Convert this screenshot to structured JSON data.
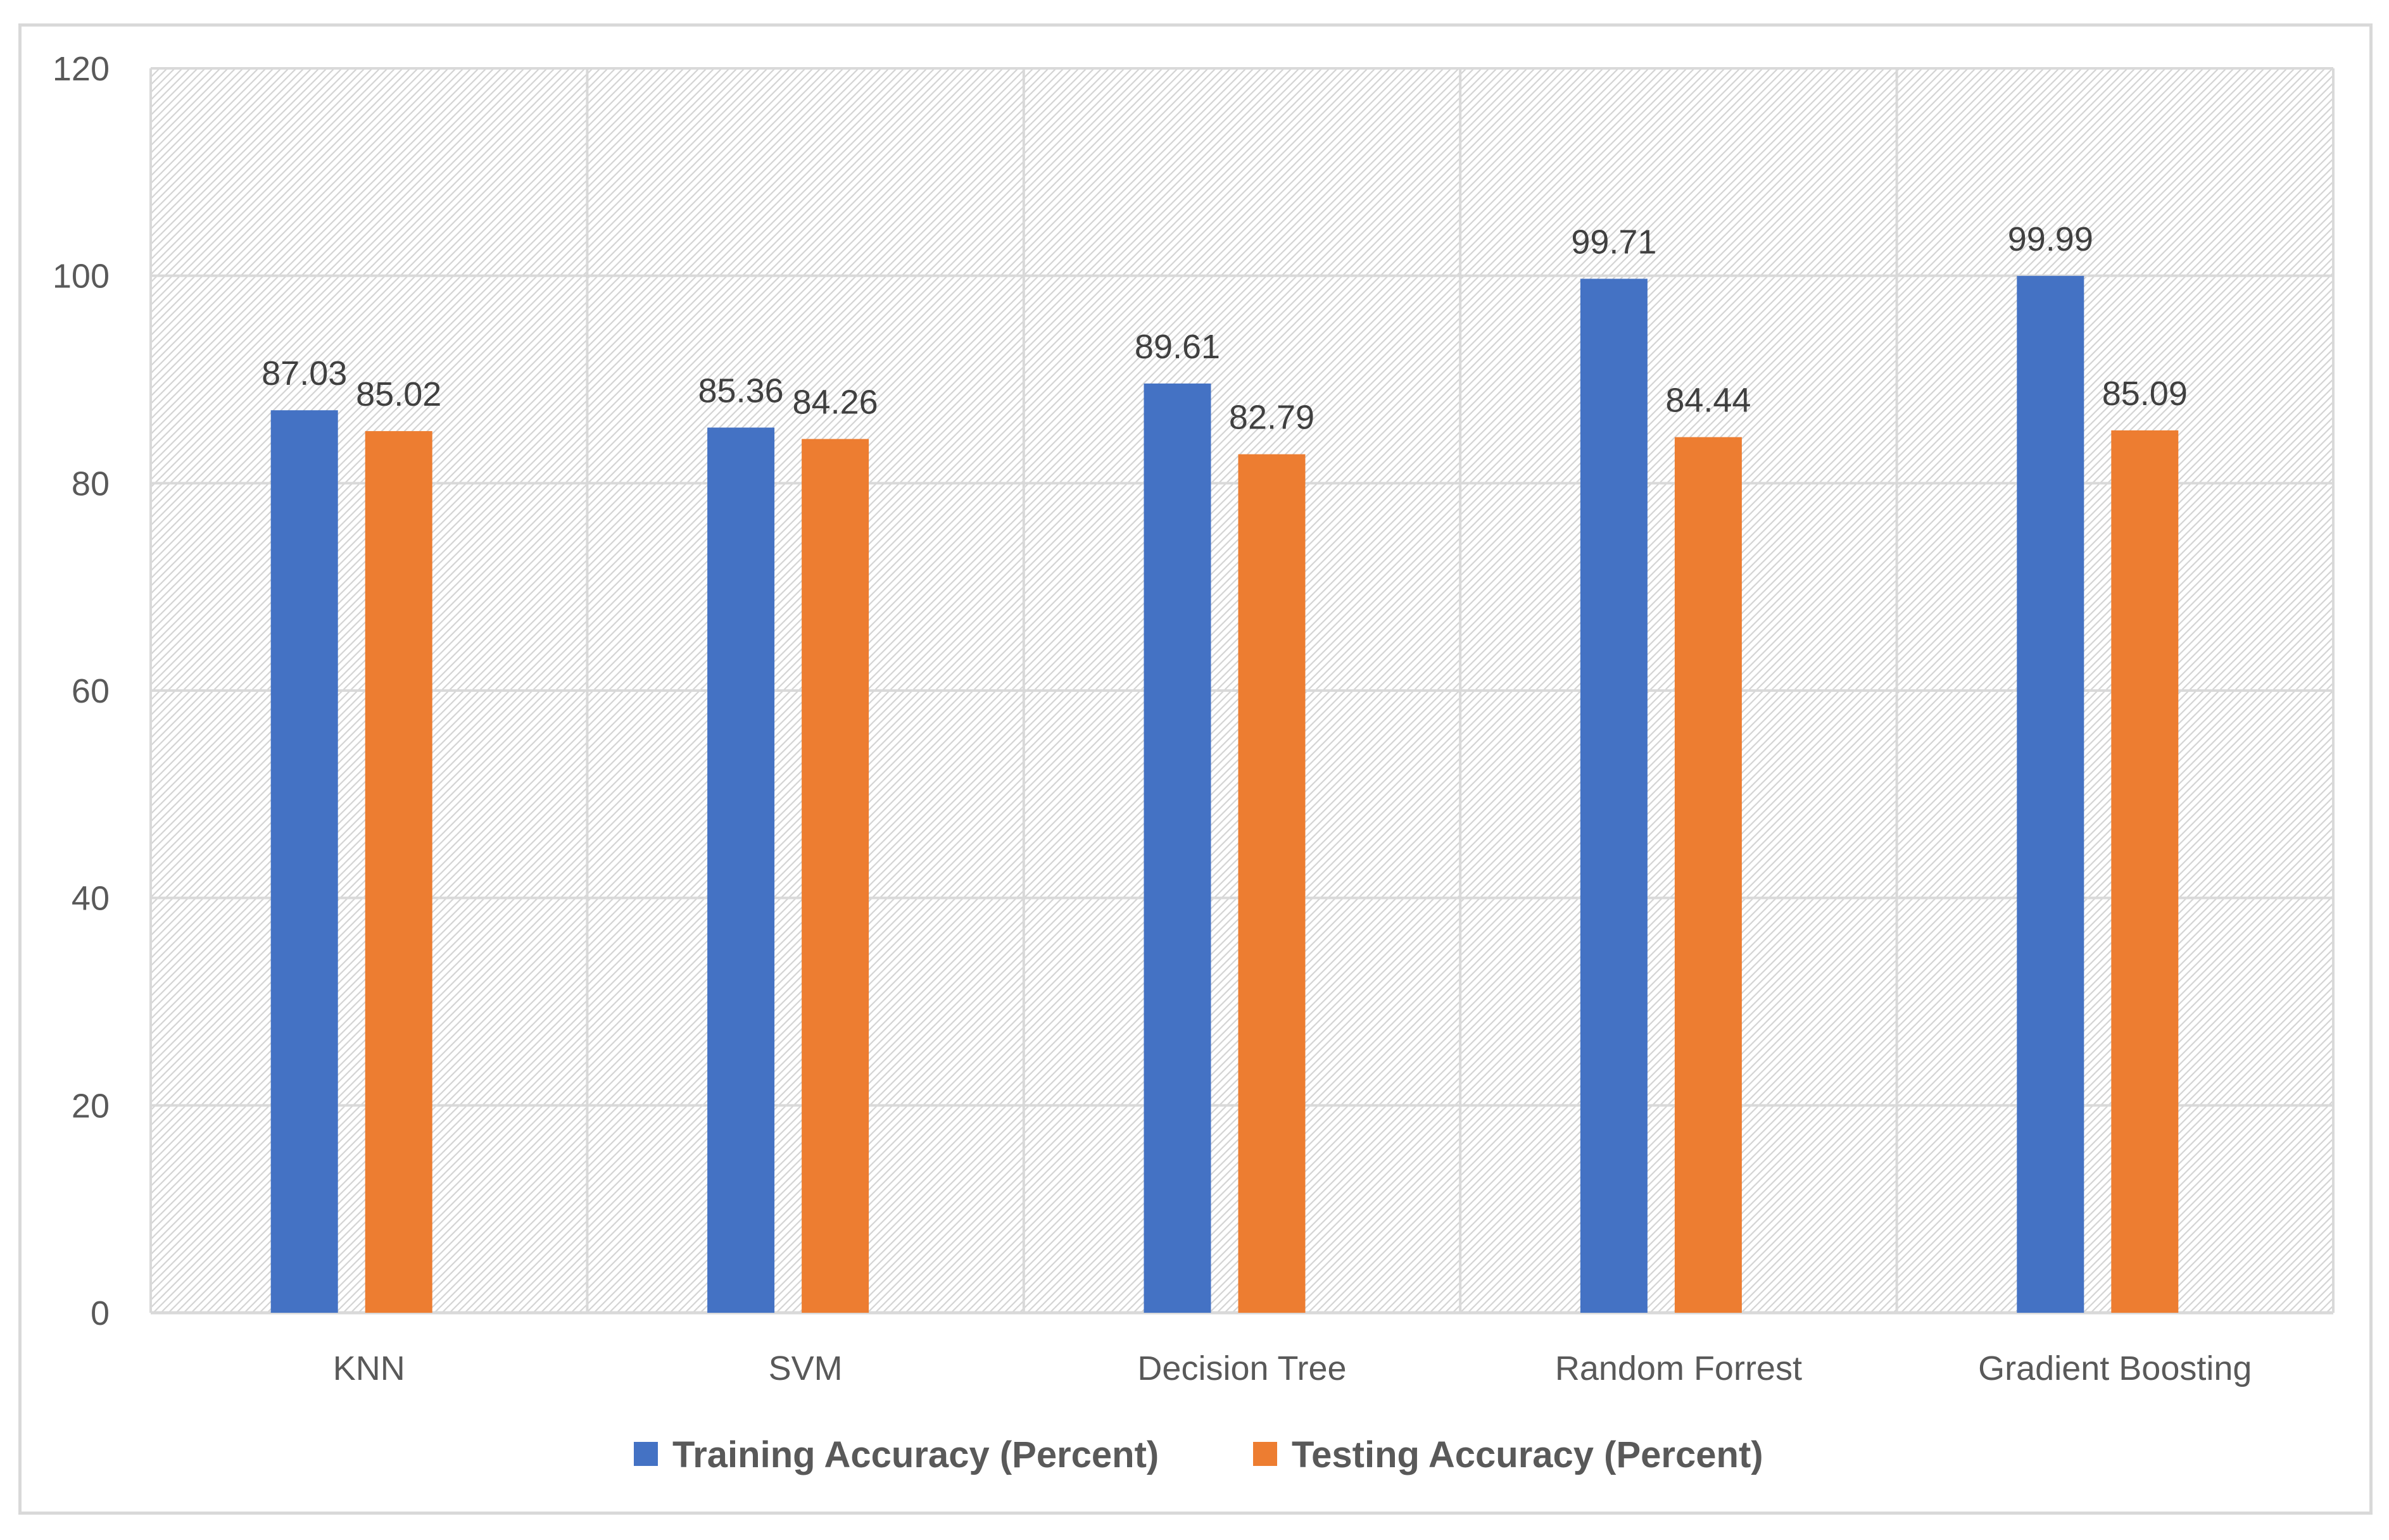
{
  "chart_data": {
    "type": "bar",
    "title": "",
    "xlabel": "",
    "ylabel": "",
    "categories": [
      "KNN",
      "SVM",
      "Decision Tree",
      "Random Forrest",
      "Gradient Boosting"
    ],
    "series": [
      {
        "name": "Training Accuracy (Percent)",
        "color": "#4472C4",
        "values": [
          87.03,
          85.36,
          89.61,
          99.71,
          99.99
        ]
      },
      {
        "name": "Testing Accuracy (Percent)",
        "color": "#ED7D31",
        "values": [
          85.02,
          84.26,
          82.79,
          84.44,
          85.09
        ]
      }
    ],
    "ylim": [
      0,
      120
    ],
    "yticks": [
      0,
      20,
      40,
      60,
      80,
      100,
      120
    ],
    "grid": true,
    "legend_position": "bottom"
  }
}
